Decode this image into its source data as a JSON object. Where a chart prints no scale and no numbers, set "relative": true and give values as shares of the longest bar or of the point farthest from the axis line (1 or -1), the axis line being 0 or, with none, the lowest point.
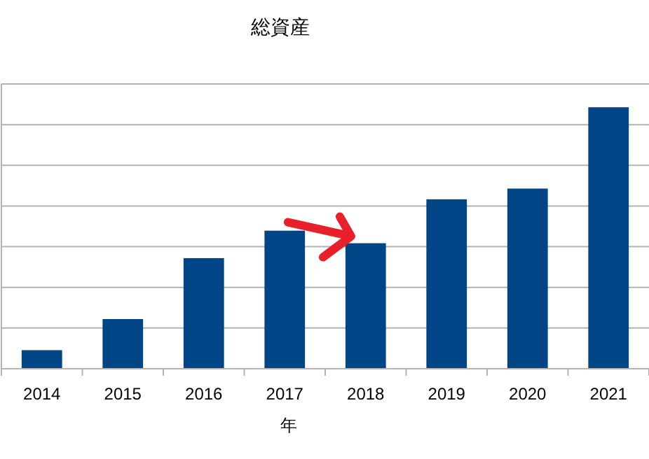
{
  "chart_data": {
    "type": "bar",
    "title": "総資産",
    "xlabel": "年",
    "categories": [
      "2014",
      "2015",
      "2016",
      "2017",
      "2018",
      "2019",
      "2020",
      "2021"
    ],
    "values": [
      0.071,
      0.19,
      0.423,
      0.528,
      0.48,
      0.648,
      0.689,
      1
    ],
    "color": "#004586",
    "relative": true,
    "grid": "y"
  }
}
